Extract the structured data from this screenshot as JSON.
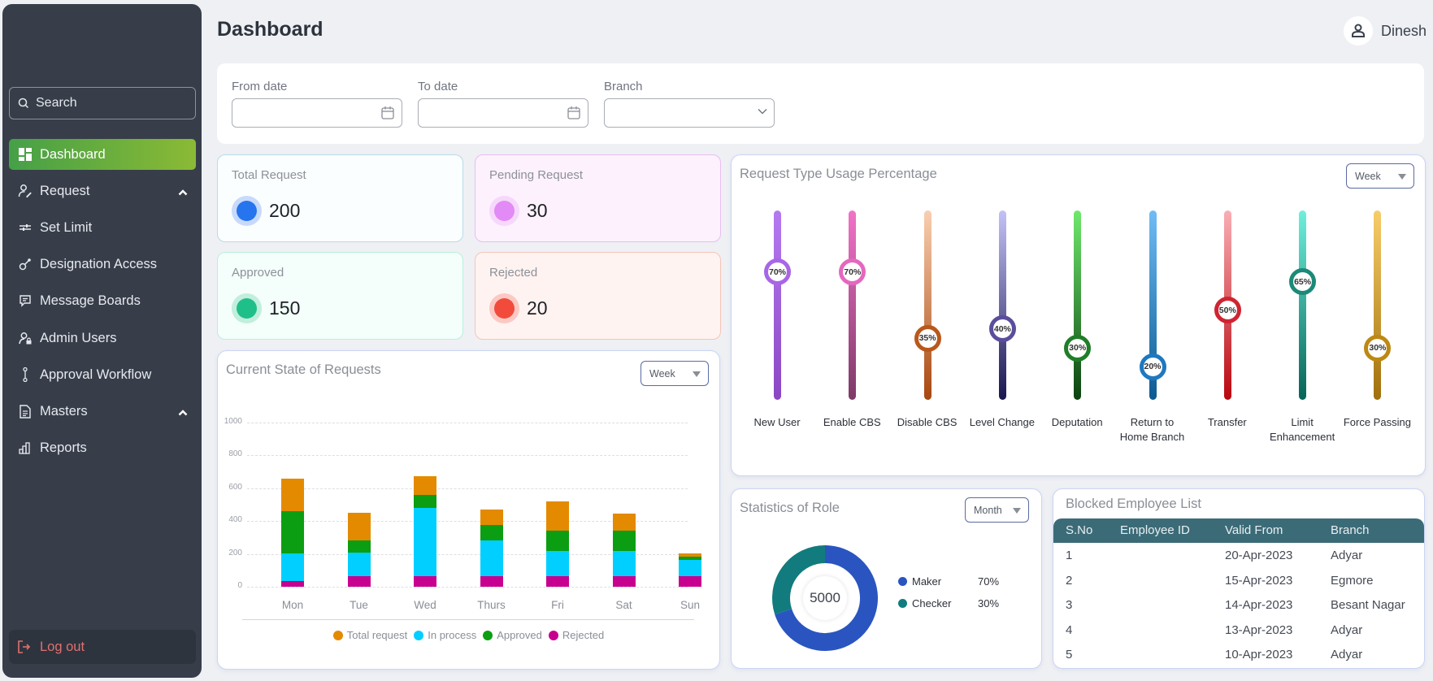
{
  "sidebar": {
    "search_placeholder": "Search",
    "items": [
      {
        "label": "Dashboard",
        "icon": "dashboard-grid-icon",
        "active": true
      },
      {
        "label": "Request",
        "icon": "user-edit-icon",
        "expandable": true
      },
      {
        "label": "Set Limit",
        "icon": "sliders-icon"
      },
      {
        "label": "Designation Access",
        "icon": "key-icon"
      },
      {
        "label": "Message Boards",
        "icon": "message-icon"
      },
      {
        "label": "Admin Users",
        "icon": "user-lock-icon"
      },
      {
        "label": "Approval Workflow",
        "icon": "workflow-icon"
      },
      {
        "label": "Masters",
        "icon": "document-icon",
        "expandable": true
      },
      {
        "label": "Reports",
        "icon": "bar-chart-icon"
      }
    ],
    "logout_label": "Log out"
  },
  "header": {
    "title": "Dashboard",
    "user_name": "Dinesh"
  },
  "filters": {
    "from_date": {
      "label": "From date",
      "value": ""
    },
    "to_date": {
      "label": "To date",
      "value": ""
    },
    "branch": {
      "label": "Branch",
      "value": ""
    }
  },
  "stats": [
    {
      "label": "Total Request",
      "value": "200",
      "color": "#2674ee",
      "halo": "#c8dafb",
      "bg": "#fbfefe",
      "border": "#b8dce6"
    },
    {
      "label": "Pending Request",
      "value": "30",
      "color": "#e28af5",
      "halo": "#f5d8fb",
      "bg": "#fdf1fd",
      "border": "#e8bdf2"
    },
    {
      "label": "Approved",
      "value": "150",
      "color": "#1fbf8a",
      "halo": "#c2eedd",
      "bg": "#f4fefa",
      "border": "#b9f0dc"
    },
    {
      "label": "Rejected",
      "value": "20",
      "color": "#f24b3c",
      "halo": "#fbc9c3",
      "bg": "#fff3f1",
      "border": "#f6c4b8"
    }
  ],
  "current_state": {
    "title": "Current State of Requests",
    "period": "Week"
  },
  "request_type": {
    "title": "Request Type Usage Percentage",
    "period": "Week",
    "items": [
      {
        "label": "New User",
        "value": 70,
        "top": "#b57af0",
        "bottom": "#8a47c4",
        "knob": "#a866e6"
      },
      {
        "label": "Enable CBS",
        "value": 70,
        "top": "#f272c8",
        "bottom": "#7e3a68",
        "knob": "#e468bf"
      },
      {
        "label": "Disable CBS",
        "value": 35,
        "top": "#f9cfb1",
        "bottom": "#a7470f",
        "knob": "#b9581c"
      },
      {
        "label": "Level Change",
        "value": 40,
        "top": "#c3c1f6",
        "bottom": "#1a1650",
        "knob": "#5a4e9c"
      },
      {
        "label": "Deputation",
        "value": 30,
        "top": "#6fe86c",
        "bottom": "#0b4210",
        "knob": "#207d29"
      },
      {
        "label": "Return to Home Branch",
        "value": 20,
        "top": "#6fbdf4",
        "bottom": "#0c5a92",
        "knob": "#1f78c0"
      },
      {
        "label": "Transfer",
        "value": 50,
        "top": "#f9aeb4",
        "bottom": "#b9070f",
        "knob": "#cf2432"
      },
      {
        "label": "Limit Enhancement",
        "value": 65,
        "top": "#6ef0dc",
        "bottom": "#066458",
        "knob": "#1b8a78"
      },
      {
        "label": "Force Passing",
        "value": 30,
        "top": "#f7cd6a",
        "bottom": "#a0700b",
        "knob": "#bd8813"
      }
    ]
  },
  "chart_data": {
    "type": "bar",
    "stacked": true,
    "title": "Current State of Requests",
    "categories": [
      "Mon",
      "Tue",
      "Wed",
      "Thurs",
      "Fri",
      "Sat",
      "Sun"
    ],
    "ylim": [
      0,
      1000
    ],
    "yticks": [
      0,
      200,
      400,
      600,
      800,
      1000
    ],
    "grid": true,
    "legend_position": "bottom",
    "series": [
      {
        "name": "Rejected",
        "color": "#c8008f",
        "values": [
          35,
          65,
          65,
          65,
          65,
          65,
          65
        ]
      },
      {
        "name": "In process",
        "color": "#00cfff",
        "values": [
          170,
          145,
          415,
          215,
          155,
          155,
          100
        ]
      },
      {
        "name": "Approved",
        "color": "#0c9e12",
        "values": [
          255,
          70,
          80,
          95,
          120,
          120,
          20
        ]
      },
      {
        "name": "Total request",
        "color": "#e48a00",
        "values": [
          200,
          170,
          115,
          95,
          180,
          105,
          20
        ]
      }
    ],
    "legend_order": [
      "Total request",
      "In process",
      "Approved",
      "Rejected"
    ]
  },
  "role_stats": {
    "title": "Statistics of Role",
    "period": "Month",
    "total": "5000",
    "slices": [
      {
        "name": "Maker",
        "value": 70,
        "label": "70%",
        "color": "#2a55c0"
      },
      {
        "name": "Checker",
        "value": 30,
        "label": "30%",
        "color": "#127b7e"
      }
    ]
  },
  "blocked_employees": {
    "title": "Blocked Employee List",
    "columns": [
      "S.No",
      "Employee ID",
      "Valid From",
      "Branch"
    ],
    "rows": [
      [
        "1",
        "",
        "20-Apr-2023",
        "Adyar"
      ],
      [
        "2",
        "",
        "15-Apr-2023",
        "Egmore"
      ],
      [
        "3",
        "",
        "14-Apr-2023",
        "Besant Nagar"
      ],
      [
        "4",
        "",
        "13-Apr-2023",
        "Adyar"
      ],
      [
        "5",
        "",
        "10-Apr-2023",
        "Adyar"
      ]
    ]
  }
}
